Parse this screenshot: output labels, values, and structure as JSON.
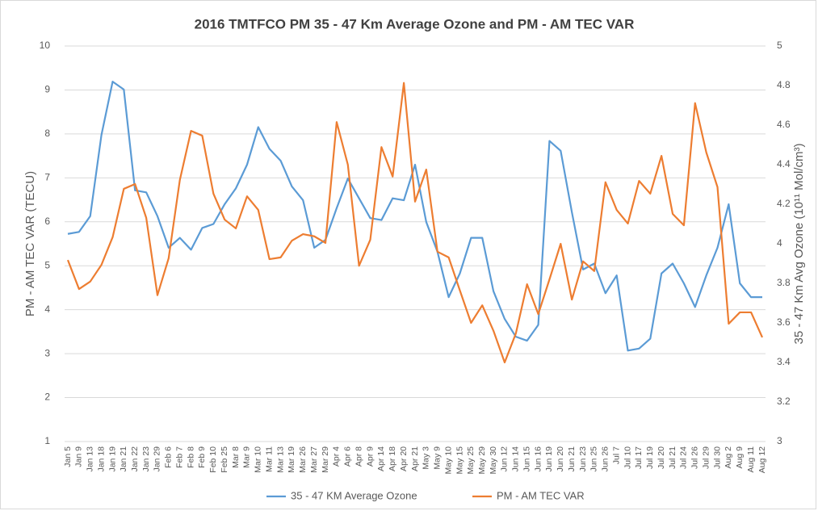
{
  "chart_data": {
    "type": "line",
    "title": "2016 TMTFCO PM 35 - 47 Km Average Ozone and PM - AM TEC VAR",
    "ylabel": "PM - AM TEC VAR (TECU)",
    "y2label": "35 - 47 Km Avg Ozone (10¹¹ Mol/cm³)",
    "categories": [
      "Jan 5",
      "Jan 9",
      "Jan 13",
      "Jan 18",
      "Jan 19",
      "Jan 21",
      "Jan 22",
      "Jan 23",
      "Jan 29",
      "Feb 6",
      "Feb 7",
      "Feb 8",
      "Feb 9",
      "Feb 10",
      "Feb 25",
      "Mar 8",
      "Mar 9",
      "Mar 10",
      "Mar 11",
      "Mar 13",
      "Mar 19",
      "Mar 26",
      "Mar 27",
      "Mar 29",
      "Apr 4",
      "Apr 6",
      "Apr 8",
      "Apr 9",
      "Apr 14",
      "Apr 18",
      "Apr 20",
      "Apr 21",
      "May 3",
      "May 9",
      "May 10",
      "May 15",
      "May 25",
      "May 29",
      "May 30",
      "Jun 12",
      "Jun 14",
      "Jun 15",
      "Jun 16",
      "Jun 19",
      "Jun 20",
      "Jun 21",
      "Jun 23",
      "Jun 25",
      "Jun 26",
      "Jul 7",
      "Jul 10",
      "Jul 17",
      "Jul 19",
      "Jul 20",
      "Jul 21",
      "Jul 24",
      "Jul 26",
      "Jul 29",
      "Jul 30",
      "Aug 2",
      "Aug 9",
      "Aug 11",
      "Aug 12"
    ],
    "series": [
      {
        "name": "35 - 47 KM Average Ozone",
        "color": "#5b9bd5",
        "axis": "y2",
        "values": [
          4.05,
          4.06,
          4.14,
          4.55,
          4.82,
          4.78,
          4.27,
          4.26,
          4.14,
          3.98,
          4.03,
          3.97,
          4.08,
          4.1,
          4.2,
          4.28,
          4.4,
          4.59,
          4.48,
          4.42,
          4.29,
          4.22,
          3.98,
          4.02,
          4.18,
          4.33,
          4.23,
          4.13,
          4.12,
          4.23,
          4.22,
          4.4,
          4.11,
          3.96,
          3.73,
          3.85,
          4.03,
          4.03,
          3.76,
          3.62,
          3.53,
          3.51,
          3.59,
          4.52,
          4.47,
          4.16,
          3.87,
          3.9,
          3.75,
          3.84,
          3.46,
          3.47,
          3.52,
          3.85,
          3.9,
          3.8,
          3.68,
          3.84,
          3.98,
          4.2,
          3.8,
          3.73,
          3.73
        ]
      },
      {
        "name": "PM - AM TEC VAR",
        "color": "#ed7d31",
        "axis": "y",
        "values": [
          5.13,
          4.47,
          4.64,
          5.02,
          5.65,
          6.75,
          6.86,
          6.09,
          4.33,
          5.17,
          6.95,
          8.07,
          7.96,
          6.64,
          6.05,
          5.85,
          6.58,
          6.27,
          5.15,
          5.19,
          5.57,
          5.72,
          5.67,
          5.52,
          8.27,
          7.3,
          5.0,
          5.59,
          7.7,
          7.03,
          9.16,
          6.46,
          7.19,
          5.32,
          5.19,
          4.44,
          3.7,
          4.1,
          3.52,
          2.8,
          3.46,
          4.58,
          3.9,
          4.69,
          5.5,
          4.23,
          5.1,
          4.88,
          6.9,
          6.27,
          5.96,
          6.93,
          6.64,
          7.5,
          6.18,
          5.92,
          8.7,
          7.58,
          6.79,
          3.68,
          3.94,
          3.94,
          3.37
        ]
      }
    ],
    "ylim": [
      1,
      10
    ],
    "yticks": [
      1,
      2,
      3,
      4,
      5,
      6,
      7,
      8,
      9,
      10
    ],
    "y2lim": [
      3,
      5
    ],
    "y2ticks": [
      3,
      3.2,
      3.4,
      3.6,
      3.8,
      4,
      4.2,
      4.4,
      4.6,
      4.8,
      5
    ],
    "grid": true,
    "legend": "bottom"
  }
}
